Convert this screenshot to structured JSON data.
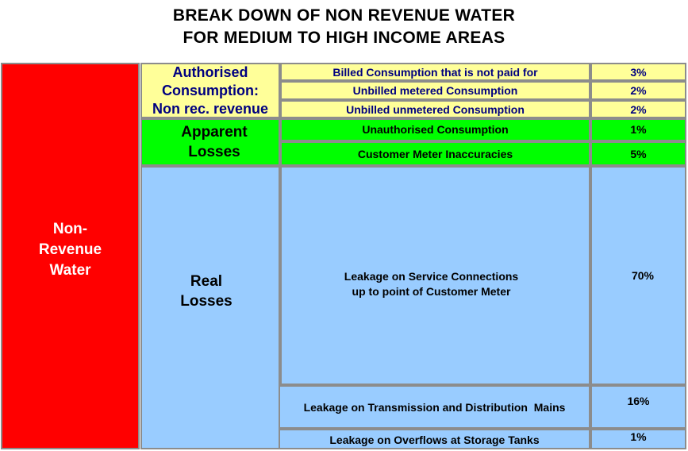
{
  "title": {
    "line1": "BREAK DOWN OF NON REVENUE WATER",
    "line2": "FOR MEDIUM TO HIGH INCOME AREAS"
  },
  "main_category": {
    "label_line1": "Non-",
    "label_line2": "Revenue",
    "label_line3": "Water",
    "color": "#ff0000"
  },
  "groups": [
    {
      "label_line1": "Authorised",
      "label_line2": "Consumption:",
      "label_line3": "Non rec. revenue",
      "color": "#ffff99",
      "components": [
        {
          "name": "Billed Consumption that is not paid for",
          "percent": "3%"
        },
        {
          "name": "Unbilled metered Consumption",
          "percent": "2%"
        },
        {
          "name": "Unbilled unmetered Consumption",
          "percent": "2%"
        }
      ]
    },
    {
      "label_line1": "Apparent",
      "label_line2": "Losses",
      "color": "#00ff00",
      "components": [
        {
          "name": "Unauthorised Consumption",
          "percent": "1%"
        },
        {
          "name": "Customer Meter Inaccuracies",
          "percent": "5%"
        }
      ]
    },
    {
      "label_line1": "Real",
      "label_line2": "Losses",
      "color": "#99ccff",
      "components": [
        {
          "name_line1": "Leakage on Service Connections",
          "name_line2": "up to point of Customer Meter",
          "percent": "70%"
        },
        {
          "name": "Leakage on Transmission and Distribution  Mains",
          "percent": "16%"
        },
        {
          "name": "Leakage on Overflows at Storage Tanks",
          "percent": "1%"
        }
      ]
    }
  ]
}
